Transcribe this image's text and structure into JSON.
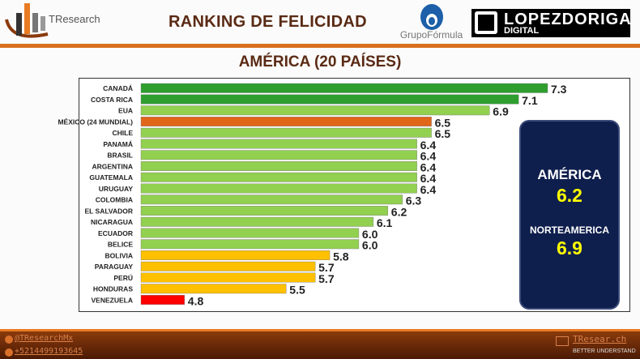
{
  "header": {
    "brand": "TResearch",
    "title": "RANKING DE FELICIDAD",
    "partner1": "GrupoFórmula",
    "partner2_line1": "LOPEZDORIGA",
    "partner2_line2": "DIGITAL"
  },
  "subtitle": "AMÉRICA (20 PAÍSES)",
  "summary": {
    "label1": "AMÉRICA",
    "value1": "6.2",
    "label2": "NORTEAMERICA",
    "value2": "6.9"
  },
  "footer": {
    "twitter": "@TResearchMx",
    "phone": "+5214499193645",
    "site": "TResear.ch",
    "tagline": "BETTER UNDERSTAND"
  },
  "colors": {
    "top": "#2e9e2e",
    "green": "#92d050",
    "mexico": "#e0661a",
    "yellow": "#ffc000",
    "red": "#ff0000"
  },
  "chart_data": {
    "type": "bar",
    "orientation": "horizontal",
    "title": "AMÉRICA (20 PAÍSES)",
    "categories": [
      "CANADÁ",
      "COSTA RICA",
      "EUA",
      "MÉXICO (24 MUNDIAL)",
      "CHILE",
      "PANAMÁ",
      "BRASIL",
      "ARGENTINA",
      "GUATEMALA",
      "URUGUAY",
      "COLOMBIA",
      "EL SALVADOR",
      "NICARAGUA",
      "ECUADOR",
      "BELICE",
      "BOLIVIA",
      "PARAGUAY",
      "PERÚ",
      "HONDURAS",
      "VENEZUELA"
    ],
    "values": [
      7.3,
      7.1,
      6.9,
      6.5,
      6.5,
      6.4,
      6.4,
      6.4,
      6.4,
      6.4,
      6.3,
      6.2,
      6.1,
      6.0,
      6.0,
      5.8,
      5.7,
      5.7,
      5.5,
      4.8
    ],
    "labels": [
      "7.3",
      "7.1",
      "6.9",
      "6.5",
      "6.5",
      "6.4",
      "6.4",
      "6.4",
      "6.4",
      "6.4",
      "6.3",
      "6.2",
      "6.1",
      "6.0",
      "6.0",
      "5.8",
      "5.7",
      "5.7",
      "5.5",
      "4.8"
    ],
    "bar_colors": [
      "top",
      "top",
      "green",
      "mexico",
      "green",
      "green",
      "green",
      "green",
      "green",
      "green",
      "green",
      "green",
      "green",
      "green",
      "green",
      "yellow",
      "yellow",
      "yellow",
      "yellow",
      "red"
    ],
    "xlim": [
      4.5,
      7.3
    ]
  }
}
